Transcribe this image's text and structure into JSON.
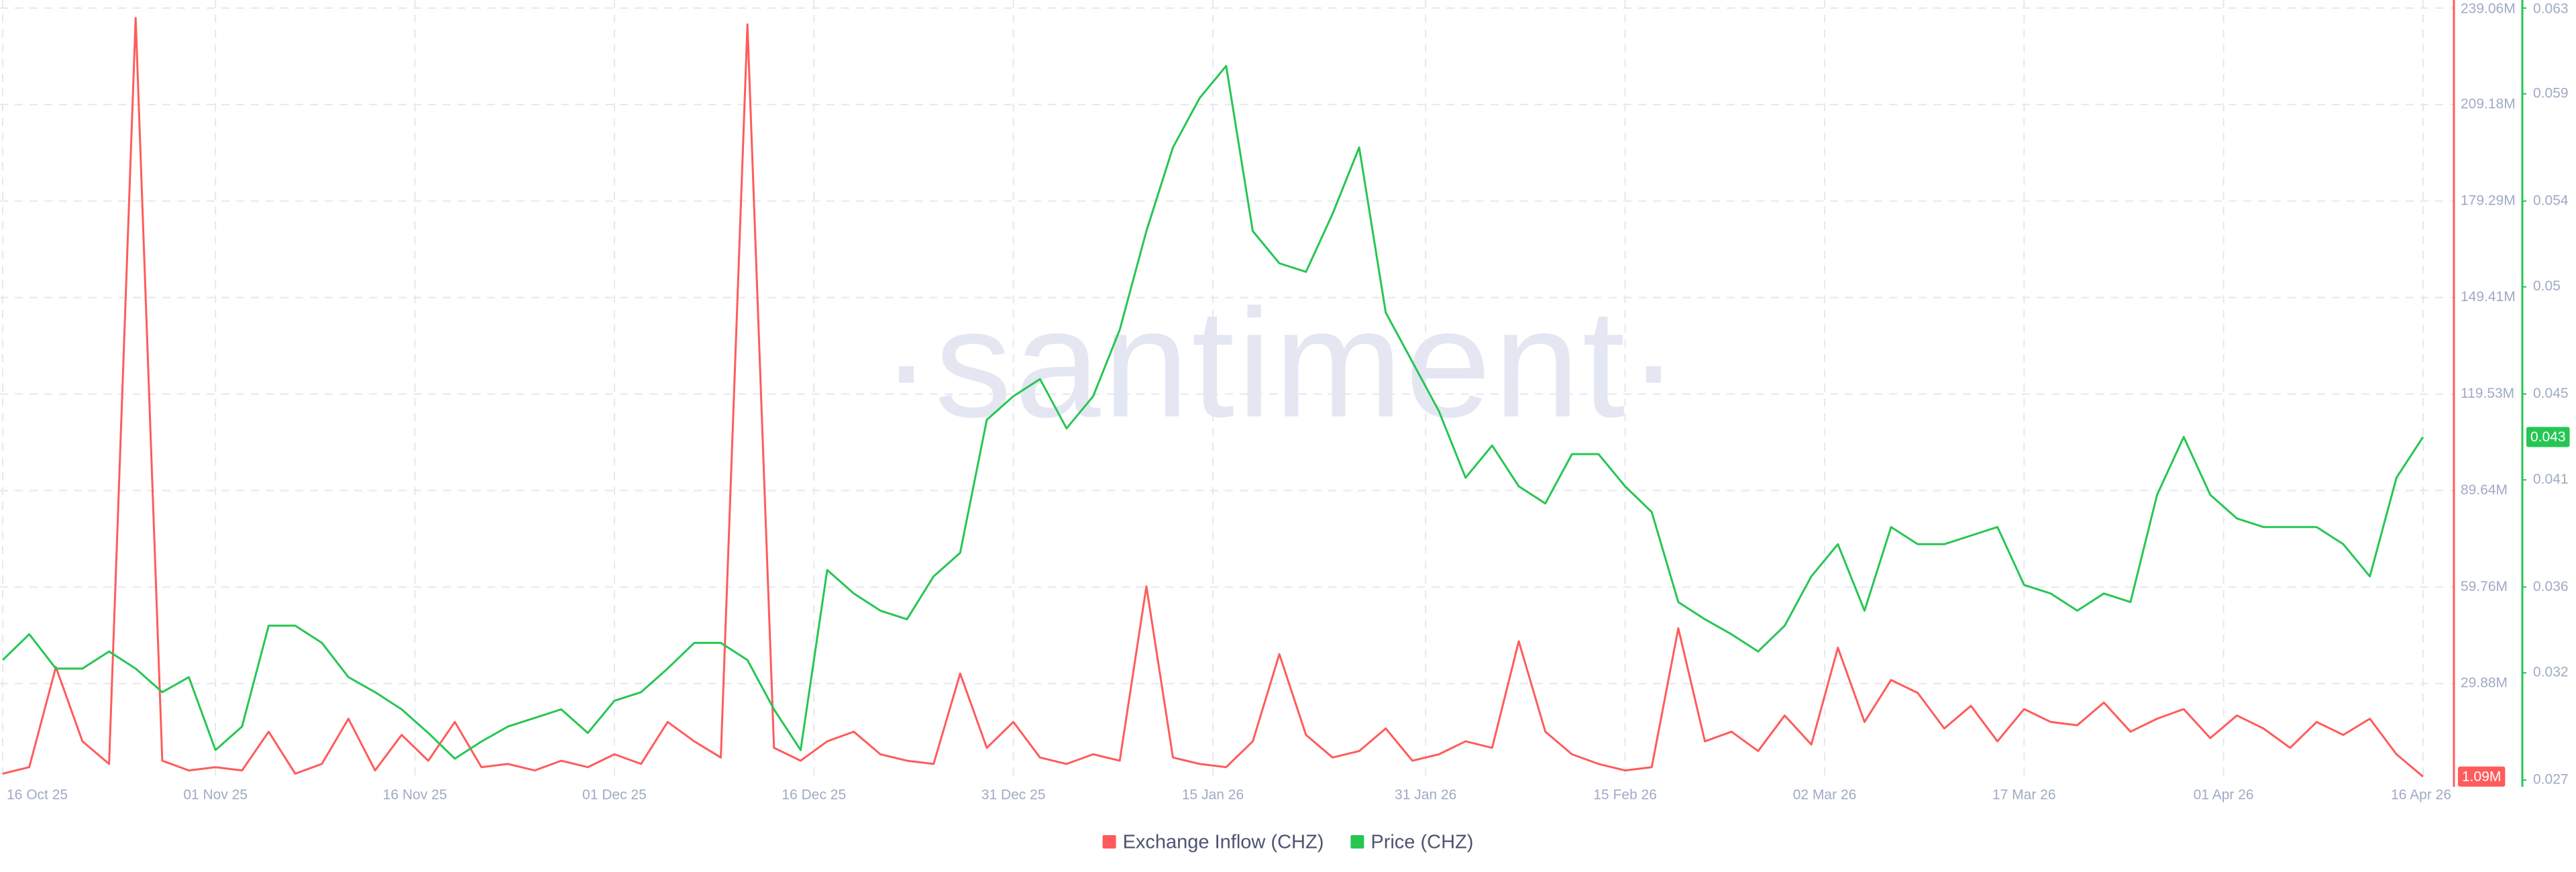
{
  "chart_data": {
    "type": "line",
    "watermark": "·santiment·",
    "x": [
      "16 Oct 25",
      "18 Oct 25",
      "20 Oct 25",
      "22 Oct 25",
      "24 Oct 25",
      "26 Oct 25",
      "28 Oct 25",
      "30 Oct 25",
      "01 Nov 25",
      "03 Nov 25",
      "05 Nov 25",
      "07 Nov 25",
      "09 Nov 25",
      "11 Nov 25",
      "13 Nov 25",
      "15 Nov 25",
      "17 Nov 25",
      "19 Nov 25",
      "21 Nov 25",
      "23 Nov 25",
      "25 Nov 25",
      "27 Nov 25",
      "29 Nov 25",
      "01 Dec 25",
      "03 Dec 25",
      "05 Dec 25",
      "07 Dec 25",
      "09 Dec 25",
      "11 Dec 25",
      "13 Dec 25",
      "15 Dec 25",
      "17 Dec 25",
      "19 Dec 25",
      "21 Dec 25",
      "23 Dec 25",
      "25 Dec 25",
      "27 Dec 25",
      "29 Dec 25",
      "31 Dec 25",
      "02 Jan 26",
      "04 Jan 26",
      "06 Jan 26",
      "08 Jan 26",
      "10 Jan 26",
      "12 Jan 26",
      "14 Jan 26",
      "16 Jan 26",
      "18 Jan 26",
      "20 Jan 26",
      "22 Jan 26",
      "24 Jan 26",
      "26 Jan 26",
      "28 Jan 26",
      "30 Jan 26",
      "01 Feb 26",
      "03 Feb 26",
      "05 Feb 26",
      "07 Feb 26",
      "09 Feb 26",
      "11 Feb 26",
      "13 Feb 26",
      "15 Feb 26",
      "17 Feb 26",
      "19 Feb 26",
      "21 Feb 26",
      "23 Feb 26",
      "25 Feb 26",
      "27 Feb 26",
      "01 Mar 26",
      "03 Mar 26",
      "05 Mar 26",
      "07 Mar 26",
      "09 Mar 26",
      "11 Mar 26",
      "13 Mar 26",
      "15 Mar 26",
      "17 Mar 26",
      "19 Mar 26",
      "21 Mar 26",
      "23 Mar 26",
      "25 Mar 26",
      "27 Mar 26",
      "29 Mar 26",
      "31 Mar 26",
      "02 Apr 26",
      "04 Apr 26",
      "06 Apr 26",
      "08 Apr 26",
      "10 Apr 26",
      "12 Apr 26",
      "14 Apr 26",
      "16 Apr 26"
    ],
    "xticks": [
      "16 Oct 25",
      "01 Nov 25",
      "16 Nov 25",
      "01 Dec 25",
      "16 Dec 25",
      "31 Dec 25",
      "15 Jan 26",
      "31 Jan 26",
      "15 Feb 26",
      "02 Mar 26",
      "17 Mar 26",
      "01 Apr 26",
      "16 Apr 26"
    ],
    "ylim": [
      0,
      239060000
    ],
    "yticks": [
      29880000,
      59760000,
      89640000,
      119530000,
      149410000,
      179290000,
      209180000,
      239060000
    ],
    "yticklabels": [
      "29.88M",
      "59.76M",
      "89.64M",
      "119.53M",
      "149.41M",
      "179.29M",
      "209.18M",
      "239.06M"
    ],
    "y2lim": [
      0.027,
      0.063
    ],
    "y2ticks": [
      0.027,
      0.032,
      0.036,
      0.041,
      0.045,
      0.05,
      0.054,
      0.059,
      0.063
    ],
    "grid": true,
    "legend": "bottom",
    "series": [
      {
        "name": "Exchange Inflow (CHZ)",
        "color": "#ff5b5b",
        "axis": "y",
        "last_value_label": "1.09M",
        "values": [
          2000000,
          4000000,
          35000000,
          12000000,
          5000000,
          236000000,
          6000000,
          3000000,
          4000000,
          3000000,
          15000000,
          2000000,
          5000000,
          19000000,
          3000000,
          14000000,
          6000000,
          18000000,
          4000000,
          5000000,
          3000000,
          6000000,
          4000000,
          8000000,
          5000000,
          18000000,
          12000000,
          7000000,
          234000000,
          10000000,
          6000000,
          12000000,
          15000000,
          8000000,
          6000000,
          5000000,
          33000000,
          10000000,
          18000000,
          7000000,
          5000000,
          8000000,
          6000000,
          60000000,
          7000000,
          5000000,
          4000000,
          12000000,
          39000000,
          14000000,
          7000000,
          9000000,
          16000000,
          6000000,
          8000000,
          12000000,
          10000000,
          43000000,
          15000000,
          8000000,
          5000000,
          3000000,
          4000000,
          47000000,
          12000000,
          15000000,
          9000000,
          20000000,
          11000000,
          41000000,
          18000000,
          31000000,
          27000000,
          16000000,
          23000000,
          12000000,
          22000000,
          18000000,
          17000000,
          24000000,
          15000000,
          19000000,
          22000000,
          13000000,
          20000000,
          16000000,
          10000000,
          18000000,
          14000000,
          19000000,
          8000000,
          1090000
        ]
      },
      {
        "name": "Price (CHZ)",
        "color": "#26c653",
        "axis": "y2",
        "last_value_label": "0.043",
        "values": [
          0.0326,
          0.0338,
          0.0322,
          0.0322,
          0.033,
          0.0322,
          0.0311,
          0.0318,
          0.0284,
          0.0295,
          0.0342,
          0.0342,
          0.0334,
          0.0318,
          0.0311,
          0.0303,
          0.0292,
          0.028,
          0.0288,
          0.0295,
          0.0299,
          0.0303,
          0.0292,
          0.0307,
          0.0311,
          0.0322,
          0.0334,
          0.0334,
          0.0326,
          0.0303,
          0.0284,
          0.0368,
          0.0357,
          0.0349,
          0.0345,
          0.0365,
          0.0376,
          0.0438,
          0.0449,
          0.0457,
          0.0434,
          0.0449,
          0.048,
          0.0526,
          0.0565,
          0.0588,
          0.0603,
          0.0526,
          0.0511,
          0.0507,
          0.0534,
          0.0565,
          0.0488,
          0.0465,
          0.0442,
          0.0411,
          0.0426,
          0.0407,
          0.0399,
          0.0422,
          0.0422,
          0.0407,
          0.0395,
          0.0353,
          0.0345,
          0.0338,
          0.033,
          0.0342,
          0.0365,
          0.038,
          0.0349,
          0.0388,
          0.038,
          0.038,
          0.0384,
          0.0388,
          0.0361,
          0.0357,
          0.0349,
          0.0357,
          0.0353,
          0.0403,
          0.043,
          0.0403,
          0.0392,
          0.0388,
          0.0388,
          0.0388,
          0.038,
          0.0365,
          0.0411,
          0.043
        ]
      }
    ]
  }
}
